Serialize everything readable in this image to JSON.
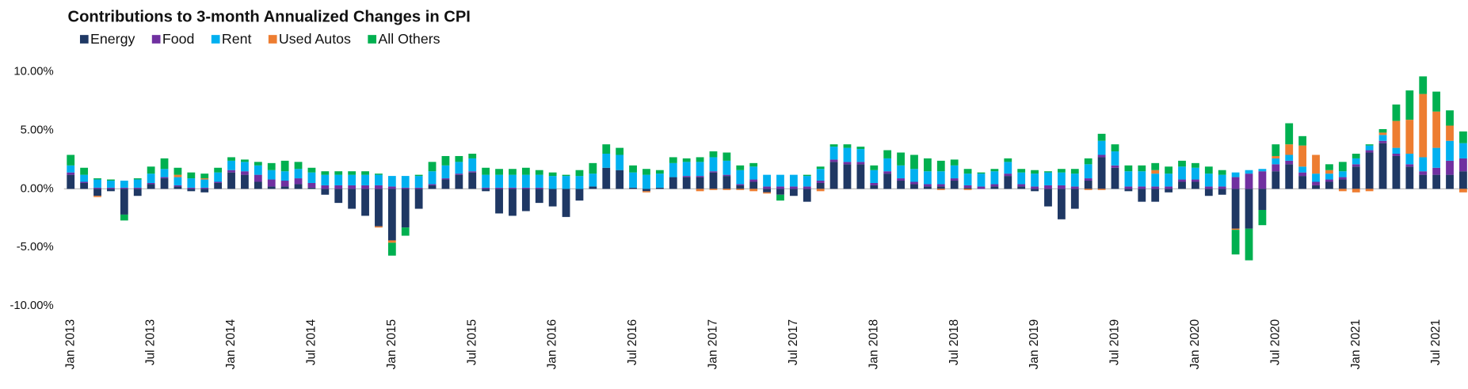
{
  "chart_data": {
    "type": "stacked_bar",
    "title": "Contributions to 3-month Annualized Changes in CPI",
    "categories": [
      "Jan 2013",
      null,
      null,
      null,
      null,
      null,
      "Jul 2013",
      null,
      null,
      null,
      null,
      null,
      "Jan 2014",
      null,
      null,
      null,
      null,
      null,
      "Jul 2014",
      null,
      null,
      null,
      null,
      null,
      "Jan 2015",
      null,
      null,
      null,
      null,
      null,
      "Jul 2015",
      null,
      null,
      null,
      null,
      null,
      "Jan 2016",
      null,
      null,
      null,
      null,
      null,
      "Jul 2016",
      null,
      null,
      null,
      null,
      null,
      "Jan 2017",
      null,
      null,
      null,
      null,
      null,
      "Jul 2017",
      null,
      null,
      null,
      null,
      null,
      "Jan 2018",
      null,
      null,
      null,
      null,
      null,
      "Jul 2018",
      null,
      null,
      null,
      null,
      null,
      "Jan 2019",
      null,
      null,
      null,
      null,
      null,
      "Jul 2019",
      null,
      null,
      null,
      null,
      null,
      "Jan 2020",
      null,
      null,
      null,
      null,
      null,
      "Jul 2020",
      null,
      null,
      null,
      null,
      null,
      "Jan 2021",
      null,
      null,
      null,
      null,
      null,
      "Jul 2021",
      null,
      null
    ],
    "series": [
      {
        "name": "Energy",
        "color": "#1f3864",
        "values": [
          1.2,
          0.5,
          -0.6,
          -0.2,
          -2.2,
          -0.6,
          0.4,
          0.9,
          0.2,
          -0.2,
          -0.3,
          0.5,
          1.4,
          1.2,
          0.6,
          0.2,
          0.2,
          0.4,
          0.1,
          -0.5,
          -1.2,
          -1.7,
          -2.3,
          -3.2,
          -4.4,
          -3.3,
          -1.7,
          0.3,
          0.8,
          1.2,
          1.4,
          -0.2,
          -2.1,
          -2.3,
          -1.9,
          -1.2,
          -1.5,
          -2.4,
          -1.0,
          0.2,
          1.8,
          1.6,
          0.1,
          -0.2,
          0.1,
          1.0,
          1.0,
          1.0,
          1.4,
          1.1,
          0.3,
          0.6,
          -0.3,
          -0.5,
          -0.6,
          -1.1,
          0.5,
          2.3,
          2.1,
          2.1,
          0.3,
          1.3,
          0.7,
          0.4,
          0.2,
          0.2,
          0.7,
          0.1,
          0.0,
          0.2,
          1.1,
          0.2,
          -0.2,
          -1.5,
          -2.6,
          -1.7,
          0.7,
          2.7,
          1.8,
          -0.2,
          -1.1,
          -1.1,
          -0.3,
          0.6,
          0.6,
          -0.6,
          -0.5,
          -3.4,
          -3.4,
          -1.8,
          1.5,
          2.1,
          1.1,
          0.3,
          0.6,
          0.8,
          1.9,
          3.1,
          3.9,
          2.8,
          1.9,
          1.2,
          1.2,
          1.2,
          1.5
        ]
      },
      {
        "name": "Food",
        "color": "#7030a0",
        "values": [
          0.2,
          0.1,
          0.1,
          0.1,
          0.1,
          0.1,
          0.1,
          0.1,
          0.1,
          0.1,
          0.1,
          0.1,
          0.2,
          0.3,
          0.6,
          0.6,
          0.5,
          0.5,
          0.4,
          0.3,
          0.3,
          0.3,
          0.3,
          0.3,
          0.2,
          0.1,
          0.1,
          0.1,
          0.1,
          0.1,
          0.1,
          0.1,
          0.1,
          0.1,
          0.1,
          0.1,
          0,
          0,
          0,
          0,
          0,
          0,
          0,
          0,
          0,
          0,
          0.1,
          0.1,
          0.1,
          0.1,
          0.1,
          0.2,
          0.2,
          0.2,
          0.2,
          0.2,
          0.2,
          0.2,
          0.2,
          0.2,
          0.2,
          0.2,
          0.2,
          0.2,
          0.2,
          0.2,
          0.2,
          0.2,
          0.2,
          0.2,
          0.2,
          0.2,
          0.2,
          0.3,
          0.3,
          0.2,
          0.2,
          0.2,
          0.2,
          0.2,
          0.2,
          0.2,
          0.2,
          0.2,
          0.2,
          0.2,
          0.2,
          1.0,
          1.3,
          1.5,
          0.6,
          0.3,
          0.3,
          0.3,
          0.2,
          0.2,
          0.2,
          0.2,
          0.2,
          0.2,
          0.2,
          0.3,
          0.6,
          1.2,
          1.1
        ]
      },
      {
        "name": "Rent",
        "color": "#00b0f0",
        "values": [
          0.6,
          0.6,
          0.7,
          0.6,
          0.6,
          0.7,
          0.8,
          0.7,
          0.7,
          0.8,
          0.7,
          0.8,
          0.8,
          0.8,
          0.8,
          0.8,
          0.8,
          0.8,
          0.9,
          0.9,
          0.9,
          0.9,
          0.9,
          0.9,
          0.9,
          1.0,
          1.0,
          1.1,
          1.1,
          1.0,
          1.1,
          1.1,
          1.1,
          1.1,
          1.1,
          1.1,
          1.1,
          1.1,
          1.1,
          1.1,
          1.2,
          1.3,
          1.3,
          1.2,
          1.2,
          1.2,
          1.2,
          1.2,
          1.2,
          1.2,
          1.2,
          1.1,
          1.0,
          1.0,
          1.0,
          0.9,
          1.0,
          1.1,
          1.2,
          1.1,
          1.1,
          1.1,
          1.1,
          1.1,
          1.1,
          1.1,
          1.1,
          1.0,
          1.1,
          1.1,
          1.0,
          1.0,
          1.1,
          1.1,
          1.1,
          1.1,
          1.2,
          1.2,
          1.2,
          1.3,
          1.3,
          1.1,
          1.1,
          1.1,
          1.0,
          1.1,
          1.0,
          0.4,
          0.3,
          0.2,
          0.5,
          0.5,
          0.5,
          0.7,
          0.5,
          0.5,
          0.5,
          0.4,
          0.5,
          0.5,
          0.9,
          1.2,
          1.7,
          1.7,
          1.3
        ]
      },
      {
        "name": "Used Autos",
        "color": "#ed7d31",
        "values": [
          0,
          0,
          -0.1,
          0,
          0,
          0,
          0,
          0,
          0.2,
          0,
          0.1,
          0,
          0,
          0,
          0,
          0,
          0,
          0,
          0,
          0,
          0,
          0,
          0,
          -0.1,
          -0.2,
          0,
          0,
          0,
          0,
          0,
          0,
          0,
          0,
          0,
          0,
          0,
          0,
          0,
          0,
          0,
          0,
          0,
          0,
          -0.1,
          0,
          0,
          0,
          -0.2,
          -0.1,
          -0.1,
          -0.1,
          -0.2,
          -0.1,
          0,
          0,
          0,
          -0.2,
          0,
          0,
          0,
          0,
          0,
          0,
          0,
          0,
          -0.1,
          0,
          -0.1,
          0,
          0,
          0,
          0,
          0,
          0,
          0,
          0,
          -0.1,
          -0.1,
          0,
          0,
          0,
          0.3,
          0,
          0,
          0,
          0,
          0,
          -0.1,
          0,
          0,
          0.2,
          0.9,
          1.8,
          1.6,
          0.3,
          -0.2,
          -0.3,
          -0.2,
          0.2,
          2.3,
          2.9,
          5.4,
          3.1,
          1.3,
          -0.3
        ]
      },
      {
        "name": "All Others",
        "color": "#00b050",
        "values": [
          0.9,
          0.6,
          0.1,
          0.1,
          -0.5,
          0.1,
          0.6,
          0.9,
          0.6,
          0.5,
          0.4,
          0.4,
          0.3,
          0.2,
          0.3,
          0.6,
          0.9,
          0.6,
          0.4,
          0.3,
          0.3,
          0.3,
          0.3,
          0.1,
          -1.1,
          -0.7,
          0.1,
          0.8,
          0.8,
          0.5,
          0.4,
          0.6,
          0.5,
          0.5,
          0.6,
          0.4,
          0.3,
          0.1,
          0.5,
          0.9,
          0.8,
          0.6,
          0.6,
          0.5,
          0.3,
          0.5,
          0.3,
          0.4,
          0.5,
          0.7,
          0.4,
          0.3,
          0.0,
          -0.5,
          0.0,
          0.1,
          0.2,
          0.2,
          0.3,
          0.2,
          0.4,
          0.7,
          1.1,
          1.2,
          1.1,
          0.9,
          0.5,
          0.4,
          0.1,
          0.2,
          0.3,
          0.3,
          0.3,
          0.1,
          0.3,
          0.4,
          0.5,
          0.6,
          0.6,
          0.5,
          0.5,
          0.6,
          0.6,
          0.5,
          0.4,
          0.6,
          0.4,
          -2.1,
          -2.7,
          -1.3,
          1.0,
          1.8,
          0.8,
          0,
          0.5,
          0.8,
          0.4,
          0.1,
          0.3,
          1.4,
          2.5,
          1.5,
          1.7,
          1.3,
          1.0
        ]
      }
    ],
    "ylim": [
      -10,
      10
    ],
    "yticks": [
      {
        "value": 10,
        "label": "10.00%"
      },
      {
        "value": 5,
        "label": "5.00%"
      },
      {
        "value": 0,
        "label": "0.00%"
      },
      {
        "value": -5,
        "label": "-5.00%"
      },
      {
        "value": -10,
        "label": "-10.00%"
      }
    ],
    "grid": false,
    "legend": "top-left"
  }
}
